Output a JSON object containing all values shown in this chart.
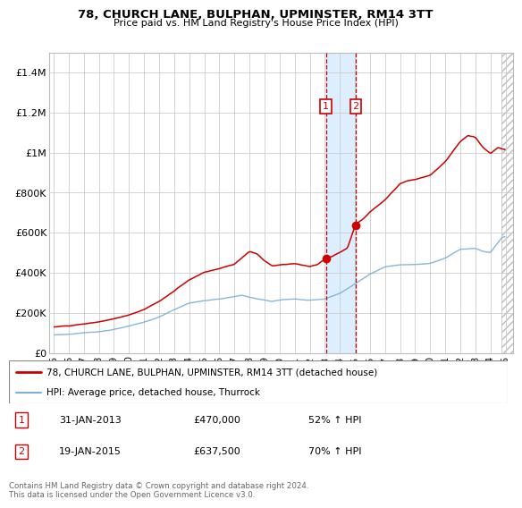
{
  "title": "78, CHURCH LANE, BULPHAN, UPMINSTER, RM14 3TT",
  "subtitle": "Price paid vs. HM Land Registry's House Price Index (HPI)",
  "legend_line1": "78, CHURCH LANE, BULPHAN, UPMINSTER, RM14 3TT (detached house)",
  "legend_line2": "HPI: Average price, detached house, Thurrock",
  "annotation1_date": "31-JAN-2013",
  "annotation1_price": "£470,000",
  "annotation1_hpi": "52% ↑ HPI",
  "annotation2_date": "19-JAN-2015",
  "annotation2_price": "£637,500",
  "annotation2_hpi": "70% ↑ HPI",
  "footer": "Contains HM Land Registry data © Crown copyright and database right 2024.\nThis data is licensed under the Open Government Licence v3.0.",
  "red_color": "#cc0000",
  "blue_color": "#7bafd4",
  "shading_color": "#ddeeff",
  "ylim": [
    0,
    1500000
  ],
  "yticks": [
    0,
    200000,
    400000,
    600000,
    800000,
    1000000,
    1200000,
    1400000
  ],
  "sale1_x": 2013.08,
  "sale1_y": 470000,
  "sale2_x": 2015.05,
  "sale2_y": 637500,
  "xmin": 1994.7,
  "xmax": 2025.5,
  "hatch_start": 2024.75
}
